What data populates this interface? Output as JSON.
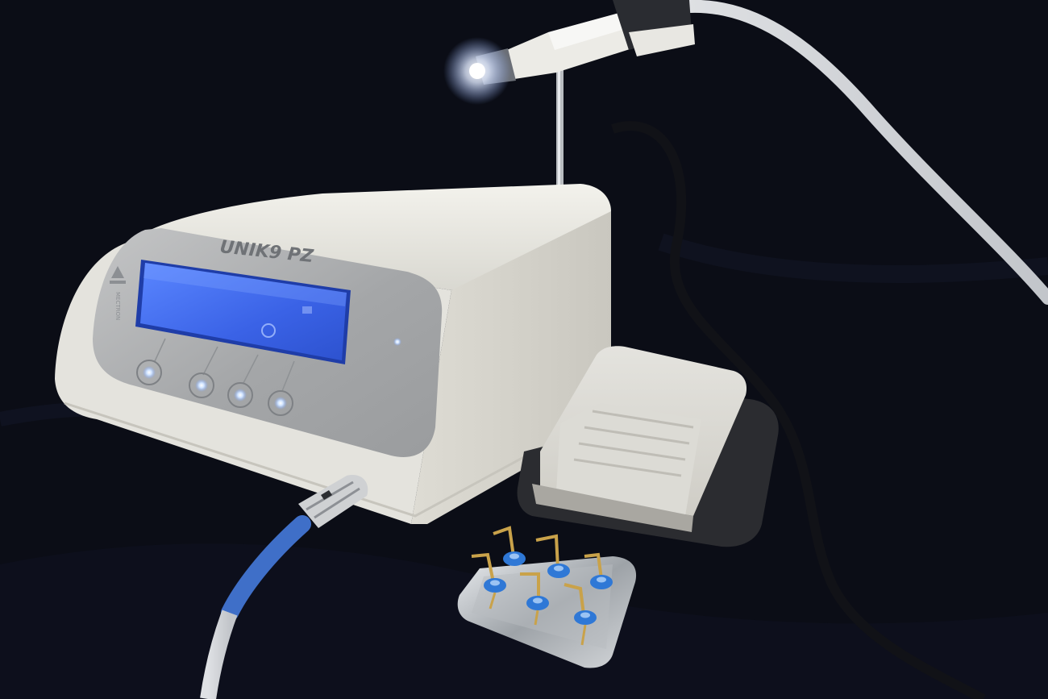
{
  "device": {
    "brand_label": "UNIK9 PZ",
    "maker_label": "MECTRON",
    "colors": {
      "cloth": "#0b0d16",
      "body": "#e9e8e2",
      "faceplate": "#a9aaab",
      "lcd": "#3d6ff0",
      "button_glow": "#cfe3ff",
      "cable_blue": "#3f6fc8",
      "tip_gold": "#c9a24a",
      "tip_ring_blue": "#2f78d6"
    },
    "front_buttons": [
      {
        "icon": "round-light-button-icon"
      },
      {
        "icon": "round-light-button-icon"
      },
      {
        "icon": "round-light-button-icon"
      },
      {
        "icon": "round-light-button-icon"
      }
    ]
  },
  "accessories": {
    "handpiece_icon": "handpiece-with-led-icon",
    "foot_pedal_icon": "foot-pedal-icon",
    "tip_tray_icon": "tip-tray-icon",
    "tips_count": 6
  }
}
